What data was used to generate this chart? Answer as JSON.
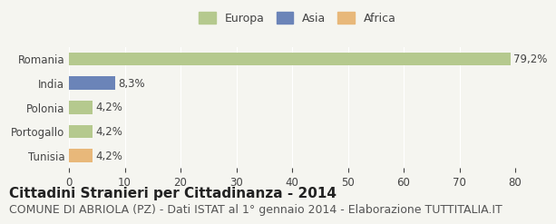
{
  "categories": [
    "Romania",
    "India",
    "Polonia",
    "Portogallo",
    "Tunisia"
  ],
  "values": [
    79.2,
    8.3,
    4.2,
    4.2,
    4.2
  ],
  "labels": [
    "79,2%",
    "8,3%",
    "4,2%",
    "4,2%",
    "4,2%"
  ],
  "colors": [
    "#b5c98e",
    "#6b84b8",
    "#b5c98e",
    "#b5c98e",
    "#e8b87a"
  ],
  "legend_items": [
    {
      "label": "Europa",
      "color": "#b5c98e"
    },
    {
      "label": "Asia",
      "color": "#6b84b8"
    },
    {
      "label": "Africa",
      "color": "#e8b87a"
    }
  ],
  "xlim": [
    0,
    80
  ],
  "xticks": [
    0,
    10,
    20,
    30,
    40,
    50,
    60,
    70,
    80
  ],
  "title": "Cittadini Stranieri per Cittadinanza - 2014",
  "subtitle": "COMUNE DI ABRIOLA (PZ) - Dati ISTAT al 1° gennaio 2014 - Elaborazione TUTTITALIA.IT",
  "bg_color": "#f5f5f0",
  "bar_height": 0.55,
  "title_fontsize": 11,
  "subtitle_fontsize": 9,
  "label_fontsize": 8.5,
  "tick_fontsize": 8.5,
  "legend_fontsize": 9
}
